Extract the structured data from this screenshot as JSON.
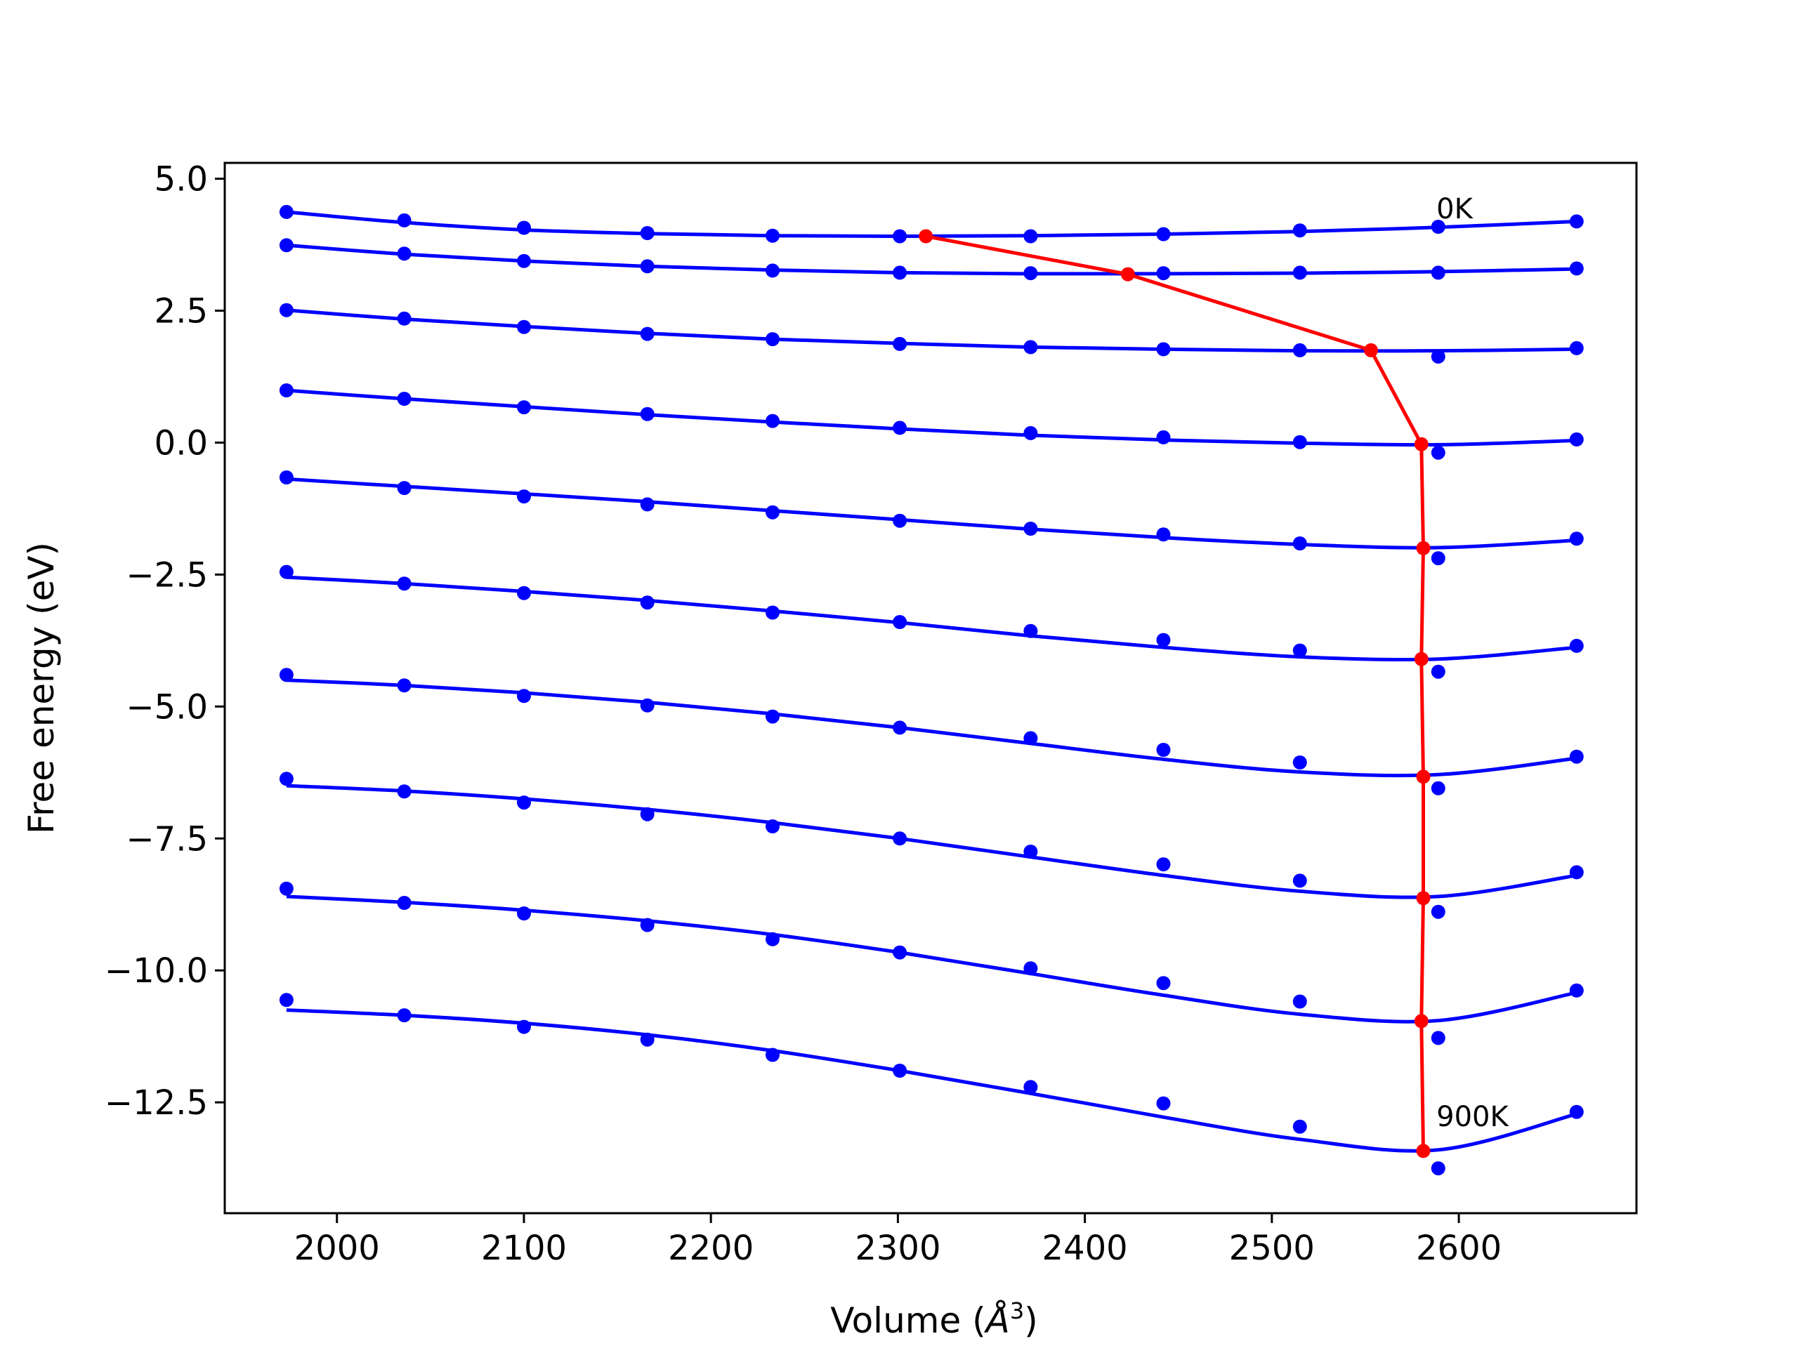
{
  "chart_data": {
    "type": "line",
    "title": "",
    "xlabel": "Volume (",
    "xlabel_unit": "Å",
    "xlabel_exp": "3",
    "xlabel_close": ")",
    "ylabel": "Free energy (eV)",
    "xlim": [
      1940,
      2695
    ],
    "ylim": [
      -14.6,
      5.3
    ],
    "xticks": [
      2000,
      2100,
      2200,
      2300,
      2400,
      2500,
      2600
    ],
    "xtick_labels": [
      "2000",
      "2100",
      "2200",
      "2300",
      "2400",
      "2500",
      "2600"
    ],
    "yticks": [
      5.0,
      2.5,
      0.0,
      -2.5,
      -5.0,
      -7.5,
      -10.0,
      -12.5
    ],
    "ytick_labels": [
      "5.0",
      "2.5",
      "0.0",
      "−2.5",
      "−5.0",
      "−7.5",
      "−10.0",
      "−12.5"
    ],
    "grid": false,
    "annotations": [
      {
        "text": "0K",
        "x": 2588,
        "y": 4.25
      },
      {
        "text": "900K",
        "x": 2588,
        "y": -12.95
      }
    ],
    "x": [
      1973,
      2036,
      2100,
      2166,
      2233,
      2301,
      2371,
      2442,
      2515,
      2589,
      2663
    ],
    "series": [
      {
        "values": [
          4.37,
          4.21,
          4.07,
          3.97,
          3.92,
          3.91,
          3.91,
          3.95,
          4.02,
          4.09,
          4.19
        ],
        "fit": [
          4.37,
          4.17,
          4.03,
          3.96,
          3.92,
          3.91,
          3.92,
          3.95,
          4.0,
          4.08,
          4.19
        ]
      },
      {
        "values": [
          3.74,
          3.58,
          3.44,
          3.34,
          3.26,
          3.22,
          3.21,
          3.21,
          3.22,
          3.22,
          3.3
        ],
        "fit": [
          3.74,
          3.57,
          3.44,
          3.34,
          3.27,
          3.22,
          3.2,
          3.2,
          3.21,
          3.24,
          3.29
        ]
      },
      {
        "values": [
          2.51,
          2.35,
          2.19,
          2.06,
          1.96,
          1.87,
          1.81,
          1.77,
          1.75,
          1.63,
          1.79
        ],
        "fit": [
          2.51,
          2.34,
          2.2,
          2.07,
          1.96,
          1.88,
          1.81,
          1.77,
          1.74,
          1.74,
          1.77
        ]
      },
      {
        "values": [
          0.99,
          0.83,
          0.67,
          0.54,
          0.41,
          0.28,
          0.18,
          0.1,
          0.01,
          -0.19,
          0.06
        ],
        "fit": [
          0.99,
          0.83,
          0.68,
          0.53,
          0.39,
          0.26,
          0.14,
          0.05,
          -0.01,
          -0.04,
          0.04
        ]
      },
      {
        "values": [
          -0.66,
          -0.86,
          -1.02,
          -1.17,
          -1.32,
          -1.48,
          -1.63,
          -1.74,
          -1.91,
          -2.19,
          -1.82
        ],
        "fit": [
          -0.69,
          -0.83,
          -0.97,
          -1.12,
          -1.29,
          -1.46,
          -1.64,
          -1.8,
          -1.93,
          -1.99,
          -1.85
        ]
      },
      {
        "values": [
          -2.45,
          -2.67,
          -2.85,
          -3.03,
          -3.22,
          -3.4,
          -3.57,
          -3.74,
          -3.94,
          -4.34,
          -3.85
        ],
        "fit": [
          -2.55,
          -2.67,
          -2.82,
          -2.99,
          -3.19,
          -3.41,
          -3.66,
          -3.88,
          -4.06,
          -4.1,
          -3.88
        ]
      },
      {
        "values": [
          -4.4,
          -4.6,
          -4.8,
          -4.98,
          -5.19,
          -5.4,
          -5.6,
          -5.82,
          -6.06,
          -6.55,
          -5.95
        ],
        "fit": [
          -4.5,
          -4.6,
          -4.74,
          -4.92,
          -5.14,
          -5.4,
          -5.7,
          -6.0,
          -6.24,
          -6.29,
          -5.98
        ]
      },
      {
        "values": [
          -6.37,
          -6.61,
          -6.82,
          -7.04,
          -7.27,
          -7.5,
          -7.75,
          -7.99,
          -8.3,
          -8.89,
          -8.14
        ],
        "fit": [
          -6.5,
          -6.6,
          -6.75,
          -6.95,
          -7.2,
          -7.5,
          -7.85,
          -8.2,
          -8.5,
          -8.6,
          -8.2
        ]
      },
      {
        "values": [
          -8.45,
          -8.72,
          -8.92,
          -9.14,
          -9.41,
          -9.66,
          -9.96,
          -10.24,
          -10.59,
          -11.28,
          -10.38
        ],
        "fit": [
          -8.6,
          -8.71,
          -8.86,
          -9.06,
          -9.32,
          -9.66,
          -10.06,
          -10.47,
          -10.83,
          -10.95,
          -10.42
        ]
      },
      {
        "values": [
          -10.56,
          -10.85,
          -11.07,
          -11.31,
          -11.6,
          -11.9,
          -12.21,
          -12.52,
          -12.96,
          -13.75,
          -12.68
        ],
        "fit": [
          -10.75,
          -10.85,
          -11.0,
          -11.22,
          -11.52,
          -11.9,
          -12.33,
          -12.78,
          -13.2,
          -13.4,
          -12.72
        ]
      }
    ],
    "minimum_path": {
      "x": [
        2315,
        2423,
        2553,
        2580,
        2581,
        2580,
        2581,
        2581,
        2580,
        2581
      ],
      "y": [
        3.91,
        3.19,
        1.75,
        -0.03,
        -2.0,
        -4.1,
        -6.33,
        -8.63,
        -10.96,
        -13.42
      ]
    },
    "colors": {
      "series": "#0000ff",
      "minimum_path": "#ff0000",
      "axes": "#000000"
    }
  }
}
